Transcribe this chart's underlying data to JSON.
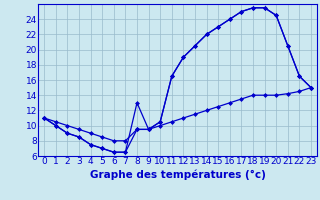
{
  "title": "Graphe des températures (°c)",
  "hours": [
    0,
    1,
    2,
    3,
    4,
    5,
    6,
    7,
    8,
    9,
    10,
    11,
    12,
    13,
    14,
    15,
    16,
    17,
    18,
    19,
    20,
    21,
    22,
    23
  ],
  "x_labels": [
    "0",
    "1",
    "2",
    "3",
    "4",
    "5",
    "6",
    "7",
    "8",
    "9",
    "10",
    "11",
    "12",
    "13",
    "14",
    "15",
    "16",
    "17",
    "18",
    "19",
    "20",
    "21",
    "2223"
  ],
  "t_spike": [
    11,
    10,
    9,
    8.5,
    7.5,
    7,
    6.5,
    6.5,
    13,
    9.5,
    10.5,
    16.5,
    19.0,
    20.5,
    22.0,
    23.0,
    24.0,
    25.0,
    25.5,
    25.5,
    24.5,
    20.5,
    16.5,
    15.0
  ],
  "t_mid": [
    11,
    10,
    9,
    8.5,
    7.5,
    7,
    6.5,
    6.5,
    9.5,
    9.5,
    10.5,
    16.5,
    19.0,
    20.5,
    22.0,
    23.0,
    24.0,
    25.0,
    25.5,
    25.5,
    24.5,
    20.5,
    16.5,
    15.0
  ],
  "t_low": [
    11,
    10,
    9,
    8.5,
    7.5,
    7,
    6.5,
    6.5,
    9.5,
    9.5,
    10.5,
    16.5,
    19.0,
    20.5,
    22.0,
    23.0,
    24.0,
    25.0,
    25.5,
    25.5,
    24.5,
    20.5,
    16.5,
    15.0
  ],
  "t_bottom": [
    11,
    10.5,
    10,
    9.5,
    9.0,
    8.5,
    8.0,
    8.0,
    9.5,
    9.5,
    10.0,
    10.5,
    11.0,
    11.5,
    12.0,
    12.5,
    13.0,
    13.5,
    14.0,
    14.0,
    14.0,
    14.2,
    14.5,
    15.0
  ],
  "line_color": "#0000cc",
  "bg_color": "#cce8f0",
  "grid_color": "#99bbcc",
  "ylim": [
    6,
    26
  ],
  "yticks": [
    6,
    8,
    10,
    12,
    14,
    16,
    18,
    20,
    22,
    24
  ],
  "tick_fontsize": 6.5,
  "title_fontsize": 7.5
}
